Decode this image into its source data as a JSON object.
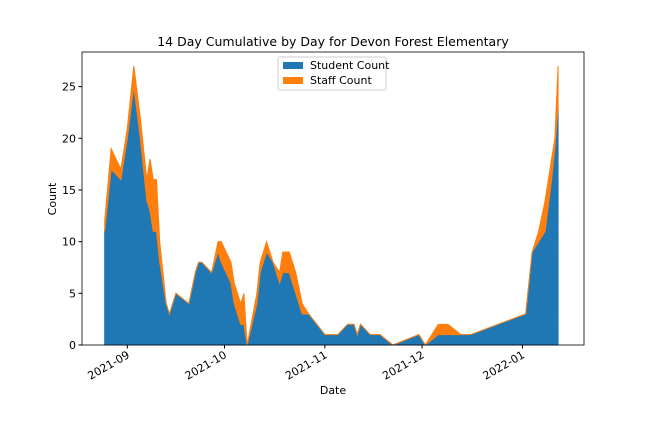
{
  "chart_data": {
    "type": "stacked_area",
    "title": "14 Day Cumulative by Day for Devon Forest Elementary",
    "xlabel": "Date",
    "ylabel": "Count",
    "x": [
      "2021-08-25",
      "2021-08-27",
      "2021-08-30",
      "2021-09-01",
      "2021-09-03",
      "2021-09-05",
      "2021-09-07",
      "2021-09-08",
      "2021-09-09",
      "2021-09-10",
      "2021-09-11",
      "2021-09-13",
      "2021-09-14",
      "2021-09-16",
      "2021-09-20",
      "2021-09-22",
      "2021-09-23",
      "2021-09-24",
      "2021-09-27",
      "2021-09-29",
      "2021-09-30",
      "2021-10-03",
      "2021-10-04",
      "2021-10-06",
      "2021-10-07",
      "2021-10-08",
      "2021-10-11",
      "2021-10-12",
      "2021-10-14",
      "2021-10-16",
      "2021-10-18",
      "2021-10-19",
      "2021-10-21",
      "2021-10-23",
      "2021-10-25",
      "2021-10-27",
      "2021-11-01",
      "2021-11-05",
      "2021-11-08",
      "2021-11-10",
      "2021-11-11",
      "2021-11-12",
      "2021-11-15",
      "2021-11-18",
      "2021-11-22",
      "2021-11-30",
      "2021-12-02",
      "2021-12-06",
      "2021-12-09",
      "2021-12-13",
      "2021-12-16",
      "2022-01-02",
      "2022-01-04",
      "2022-01-06",
      "2022-01-08",
      "2022-01-10",
      "2022-01-11",
      "2022-01-12"
    ],
    "series": [
      {
        "name": "Student Count",
        "color": "#1f77b4",
        "values": [
          11,
          17,
          16,
          20,
          25,
          20,
          14,
          13,
          11,
          11,
          8,
          4,
          3,
          5,
          4,
          7,
          8,
          8,
          7,
          9,
          8,
          6,
          4,
          2,
          2,
          0,
          4,
          7,
          9,
          8,
          6,
          7,
          7,
          5,
          3,
          3,
          1,
          1,
          2,
          2,
          1,
          2,
          1,
          1,
          0,
          1,
          0,
          1,
          1,
          1,
          1,
          3,
          9,
          10,
          11,
          16,
          19,
          23
        ]
      },
      {
        "name": "Staff Count",
        "color": "#ff7f0e",
        "values": [
          1,
          2,
          1,
          1,
          2,
          2,
          2,
          5,
          5,
          5,
          2,
          0,
          0,
          0,
          0,
          0,
          0,
          0,
          0,
          1,
          2,
          2,
          2,
          2,
          3,
          0,
          1,
          1,
          1,
          0,
          1,
          2,
          2,
          2,
          1,
          0,
          0,
          0,
          0,
          0,
          0,
          0,
          0,
          0,
          0,
          0,
          0,
          1,
          1,
          0,
          0,
          0,
          0,
          1,
          3,
          2,
          1,
          4
        ]
      }
    ],
    "xlim": [
      "2021-08-18",
      "2022-01-20"
    ],
    "xticks": [
      {
        "value": "2021-09-01",
        "label": "2021-09"
      },
      {
        "value": "2021-10-01",
        "label": "2021-10"
      },
      {
        "value": "2021-11-01",
        "label": "2021-11"
      },
      {
        "value": "2021-12-01",
        "label": "2021-12"
      },
      {
        "value": "2022-01-01",
        "label": "2022-01"
      }
    ],
    "ylim": [
      0,
      28.35
    ],
    "yticks": [
      0,
      5,
      10,
      15,
      20,
      25
    ],
    "legend": "upper center"
  }
}
